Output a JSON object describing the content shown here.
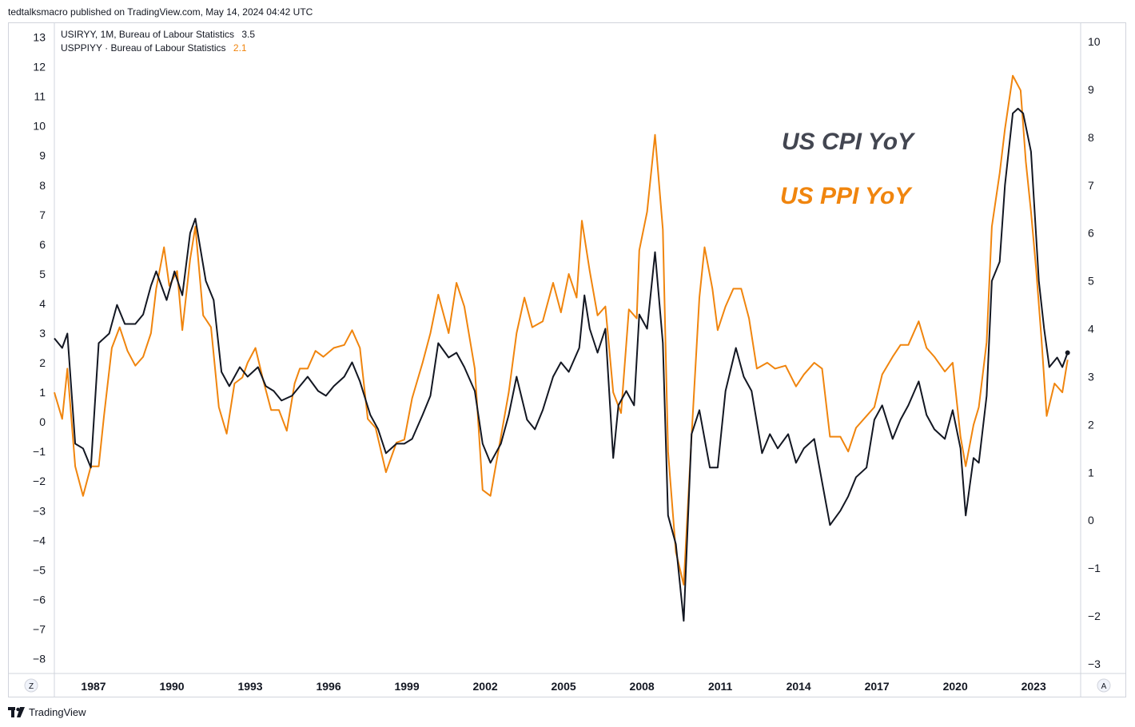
{
  "header": {
    "text": "tedtalksmacro published on TradingView.com, May 14, 2024 04:42 UTC"
  },
  "legend": {
    "cpi": {
      "label": "USIRYY, 1M, Bureau of Labour Statistics",
      "value": "3.5"
    },
    "ppi": {
      "label": "USPPIYY · Bureau of Labour Statistics",
      "value": "2.1"
    }
  },
  "annotations": {
    "cpi": "US CPI YoY",
    "ppi": "US PPI YoY"
  },
  "corner": {
    "left": "Z",
    "right": "A"
  },
  "footer": {
    "brand": "TradingView"
  },
  "colors": {
    "cpi": "#131722",
    "ppi": "#f0850e",
    "grid": "#d1d4dc"
  },
  "chart_data": {
    "type": "line",
    "x_range": [
      1985.5,
      2024.8
    ],
    "x_ticks": [
      "1987",
      "1990",
      "1993",
      "1996",
      "1999",
      "2002",
      "2005",
      "2008",
      "2011",
      "2014",
      "2017",
      "2020",
      "2023"
    ],
    "left_axis": {
      "series": "PPI",
      "range": [
        -8.5,
        13.5
      ],
      "ticks": [
        13,
        12,
        11,
        10,
        9,
        8,
        7,
        6,
        5,
        4,
        3,
        2,
        1,
        0,
        -1,
        -2,
        -3,
        -4,
        -5,
        -6,
        -7,
        -8
      ],
      "tick_labels": [
        "13",
        "12",
        "11",
        "10",
        "9",
        "8",
        "7",
        "6",
        "5",
        "4",
        "3",
        "2",
        "1",
        "0",
        "−1",
        "−2",
        "−3",
        "−4",
        "−5",
        "−6",
        "−7",
        "−8"
      ]
    },
    "right_axis": {
      "series": "CPI",
      "range": [
        -3.2,
        10.4
      ],
      "ticks": [
        10,
        9,
        8,
        7,
        6,
        5,
        4,
        3,
        2,
        1,
        0,
        -1,
        -2,
        -3
      ],
      "tick_labels": [
        "10",
        "9",
        "8",
        "7",
        "6",
        "5",
        "4",
        "3",
        "2",
        "1",
        "0",
        "−1",
        "−2",
        "−3"
      ]
    },
    "series": [
      {
        "name": "USIRYY (US CPI YoY)",
        "axis": "right",
        "points": [
          [
            1985.5,
            3.8
          ],
          [
            1985.8,
            3.6
          ],
          [
            1986.0,
            3.9
          ],
          [
            1986.3,
            1.6
          ],
          [
            1986.6,
            1.5
          ],
          [
            1986.9,
            1.1
          ],
          [
            1987.2,
            3.7
          ],
          [
            1987.6,
            3.9
          ],
          [
            1987.9,
            4.5
          ],
          [
            1988.2,
            4.1
          ],
          [
            1988.6,
            4.1
          ],
          [
            1988.9,
            4.3
          ],
          [
            1989.2,
            4.9
          ],
          [
            1989.4,
            5.2
          ],
          [
            1989.8,
            4.6
          ],
          [
            1990.1,
            5.2
          ],
          [
            1990.4,
            4.7
          ],
          [
            1990.7,
            6.0
          ],
          [
            1990.9,
            6.3
          ],
          [
            1991.3,
            5.0
          ],
          [
            1991.6,
            4.6
          ],
          [
            1991.9,
            3.1
          ],
          [
            1992.2,
            2.8
          ],
          [
            1992.6,
            3.2
          ],
          [
            1992.9,
            3.0
          ],
          [
            1993.3,
            3.2
          ],
          [
            1993.6,
            2.8
          ],
          [
            1993.9,
            2.7
          ],
          [
            1994.2,
            2.5
          ],
          [
            1994.6,
            2.6
          ],
          [
            1994.9,
            2.8
          ],
          [
            1995.2,
            3.0
          ],
          [
            1995.6,
            2.7
          ],
          [
            1995.9,
            2.6
          ],
          [
            1996.2,
            2.8
          ],
          [
            1996.6,
            3.0
          ],
          [
            1996.9,
            3.3
          ],
          [
            1997.2,
            2.9
          ],
          [
            1997.6,
            2.2
          ],
          [
            1997.9,
            1.9
          ],
          [
            1998.2,
            1.4
          ],
          [
            1998.6,
            1.6
          ],
          [
            1998.9,
            1.6
          ],
          [
            1999.2,
            1.7
          ],
          [
            1999.6,
            2.2
          ],
          [
            1999.9,
            2.6
          ],
          [
            2000.2,
            3.7
          ],
          [
            2000.6,
            3.4
          ],
          [
            2000.9,
            3.5
          ],
          [
            2001.2,
            3.2
          ],
          [
            2001.6,
            2.7
          ],
          [
            2001.9,
            1.6
          ],
          [
            2002.2,
            1.2
          ],
          [
            2002.6,
            1.6
          ],
          [
            2002.9,
            2.2
          ],
          [
            2003.2,
            3.0
          ],
          [
            2003.6,
            2.1
          ],
          [
            2003.9,
            1.9
          ],
          [
            2004.2,
            2.3
          ],
          [
            2004.6,
            3.0
          ],
          [
            2004.9,
            3.3
          ],
          [
            2005.2,
            3.1
          ],
          [
            2005.6,
            3.6
          ],
          [
            2005.8,
            4.7
          ],
          [
            2006.0,
            4.0
          ],
          [
            2006.3,
            3.5
          ],
          [
            2006.6,
            4.0
          ],
          [
            2006.9,
            1.3
          ],
          [
            2007.1,
            2.4
          ],
          [
            2007.4,
            2.7
          ],
          [
            2007.7,
            2.4
          ],
          [
            2007.9,
            4.3
          ],
          [
            2008.2,
            4.0
          ],
          [
            2008.5,
            5.6
          ],
          [
            2008.8,
            3.7
          ],
          [
            2009.0,
            0.1
          ],
          [
            2009.3,
            -0.5
          ],
          [
            2009.6,
            -2.1
          ],
          [
            2009.9,
            1.8
          ],
          [
            2010.2,
            2.3
          ],
          [
            2010.6,
            1.1
          ],
          [
            2010.9,
            1.1
          ],
          [
            2011.2,
            2.7
          ],
          [
            2011.6,
            3.6
          ],
          [
            2011.9,
            3.0
          ],
          [
            2012.2,
            2.7
          ],
          [
            2012.6,
            1.4
          ],
          [
            2012.9,
            1.8
          ],
          [
            2013.2,
            1.5
          ],
          [
            2013.6,
            1.8
          ],
          [
            2013.9,
            1.2
          ],
          [
            2014.2,
            1.5
          ],
          [
            2014.6,
            1.7
          ],
          [
            2014.9,
            0.8
          ],
          [
            2015.2,
            -0.1
          ],
          [
            2015.6,
            0.2
          ],
          [
            2015.9,
            0.5
          ],
          [
            2016.2,
            0.9
          ],
          [
            2016.6,
            1.1
          ],
          [
            2016.9,
            2.1
          ],
          [
            2017.2,
            2.4
          ],
          [
            2017.6,
            1.7
          ],
          [
            2017.9,
            2.1
          ],
          [
            2018.2,
            2.4
          ],
          [
            2018.6,
            2.9
          ],
          [
            2018.9,
            2.2
          ],
          [
            2019.2,
            1.9
          ],
          [
            2019.6,
            1.7
          ],
          [
            2019.9,
            2.3
          ],
          [
            2020.2,
            1.5
          ],
          [
            2020.4,
            0.1
          ],
          [
            2020.7,
            1.3
          ],
          [
            2020.9,
            1.2
          ],
          [
            2021.2,
            2.6
          ],
          [
            2021.4,
            5.0
          ],
          [
            2021.7,
            5.4
          ],
          [
            2021.9,
            7.0
          ],
          [
            2022.2,
            8.5
          ],
          [
            2022.4,
            8.6
          ],
          [
            2022.6,
            8.5
          ],
          [
            2022.9,
            7.7
          ],
          [
            2023.2,
            5.0
          ],
          [
            2023.4,
            4.0
          ],
          [
            2023.6,
            3.2
          ],
          [
            2023.9,
            3.4
          ],
          [
            2024.1,
            3.2
          ],
          [
            2024.3,
            3.5
          ]
        ]
      },
      {
        "name": "USPPIYY (US PPI YoY)",
        "axis": "left",
        "points": [
          [
            1985.5,
            1.0
          ],
          [
            1985.8,
            0.1
          ],
          [
            1986.0,
            1.8
          ],
          [
            1986.3,
            -1.5
          ],
          [
            1986.6,
            -2.5
          ],
          [
            1986.9,
            -1.5
          ],
          [
            1987.2,
            -1.5
          ],
          [
            1987.4,
            0.2
          ],
          [
            1987.7,
            2.5
          ],
          [
            1988.0,
            3.2
          ],
          [
            1988.3,
            2.4
          ],
          [
            1988.6,
            1.9
          ],
          [
            1988.9,
            2.2
          ],
          [
            1989.2,
            3.0
          ],
          [
            1989.4,
            4.5
          ],
          [
            1989.7,
            5.9
          ],
          [
            1989.9,
            4.6
          ],
          [
            1990.2,
            5.1
          ],
          [
            1990.4,
            3.1
          ],
          [
            1990.7,
            5.5
          ],
          [
            1990.9,
            6.6
          ],
          [
            1991.2,
            3.6
          ],
          [
            1991.5,
            3.2
          ],
          [
            1991.8,
            0.5
          ],
          [
            1992.1,
            -0.4
          ],
          [
            1992.4,
            1.3
          ],
          [
            1992.7,
            1.5
          ],
          [
            1992.9,
            2.0
          ],
          [
            1993.2,
            2.5
          ],
          [
            1993.5,
            1.4
          ],
          [
            1993.8,
            0.4
          ],
          [
            1994.1,
            0.4
          ],
          [
            1994.4,
            -0.3
          ],
          [
            1994.7,
            1.3
          ],
          [
            1994.9,
            1.8
          ],
          [
            1995.2,
            1.8
          ],
          [
            1995.5,
            2.4
          ],
          [
            1995.8,
            2.2
          ],
          [
            1996.2,
            2.5
          ],
          [
            1996.6,
            2.6
          ],
          [
            1996.9,
            3.1
          ],
          [
            1997.2,
            2.5
          ],
          [
            1997.5,
            0.1
          ],
          [
            1997.8,
            -0.2
          ],
          [
            1998.2,
            -1.7
          ],
          [
            1998.6,
            -0.7
          ],
          [
            1998.9,
            -0.6
          ],
          [
            1999.2,
            0.8
          ],
          [
            1999.6,
            2.0
          ],
          [
            1999.9,
            3.0
          ],
          [
            2000.2,
            4.3
          ],
          [
            2000.6,
            3.0
          ],
          [
            2000.9,
            4.7
          ],
          [
            2001.2,
            3.9
          ],
          [
            2001.6,
            1.8
          ],
          [
            2001.9,
            -2.3
          ],
          [
            2002.2,
            -2.5
          ],
          [
            2002.5,
            -1.0
          ],
          [
            2002.9,
            1.0
          ],
          [
            2003.2,
            3.0
          ],
          [
            2003.5,
            4.2
          ],
          [
            2003.8,
            3.2
          ],
          [
            2004.2,
            3.4
          ],
          [
            2004.6,
            4.7
          ],
          [
            2004.9,
            3.7
          ],
          [
            2005.2,
            5.0
          ],
          [
            2005.5,
            4.2
          ],
          [
            2005.7,
            6.8
          ],
          [
            2006.0,
            5.1
          ],
          [
            2006.3,
            3.6
          ],
          [
            2006.6,
            3.9
          ],
          [
            2006.9,
            1.0
          ],
          [
            2007.2,
            0.3
          ],
          [
            2007.5,
            3.8
          ],
          [
            2007.8,
            3.5
          ],
          [
            2007.9,
            5.8
          ],
          [
            2008.2,
            7.1
          ],
          [
            2008.5,
            9.7
          ],
          [
            2008.8,
            6.5
          ],
          [
            2009.0,
            -1.0
          ],
          [
            2009.3,
            -4.4
          ],
          [
            2009.6,
            -5.5
          ],
          [
            2009.9,
            -0.5
          ],
          [
            2010.2,
            4.2
          ],
          [
            2010.4,
            5.9
          ],
          [
            2010.7,
            4.5
          ],
          [
            2010.9,
            3.1
          ],
          [
            2011.2,
            3.9
          ],
          [
            2011.5,
            4.5
          ],
          [
            2011.8,
            4.5
          ],
          [
            2012.1,
            3.5
          ],
          [
            2012.4,
            1.8
          ],
          [
            2012.8,
            2.0
          ],
          [
            2013.1,
            1.8
          ],
          [
            2013.5,
            1.9
          ],
          [
            2013.9,
            1.2
          ],
          [
            2014.2,
            1.6
          ],
          [
            2014.6,
            2.0
          ],
          [
            2014.9,
            1.8
          ],
          [
            2015.2,
            -0.5
          ],
          [
            2015.6,
            -0.5
          ],
          [
            2015.9,
            -1.0
          ],
          [
            2016.2,
            -0.2
          ],
          [
            2016.6,
            0.2
          ],
          [
            2016.9,
            0.5
          ],
          [
            2017.2,
            1.6
          ],
          [
            2017.6,
            2.2
          ],
          [
            2017.9,
            2.6
          ],
          [
            2018.2,
            2.6
          ],
          [
            2018.6,
            3.4
          ],
          [
            2018.9,
            2.5
          ],
          [
            2019.2,
            2.2
          ],
          [
            2019.6,
            1.7
          ],
          [
            2019.9,
            2.0
          ],
          [
            2020.2,
            -0.5
          ],
          [
            2020.4,
            -1.5
          ],
          [
            2020.7,
            -0.1
          ],
          [
            2020.9,
            0.5
          ],
          [
            2021.2,
            2.7
          ],
          [
            2021.4,
            6.6
          ],
          [
            2021.7,
            8.4
          ],
          [
            2021.9,
            9.9
          ],
          [
            2022.2,
            11.7
          ],
          [
            2022.5,
            11.2
          ],
          [
            2022.7,
            8.8
          ],
          [
            2022.9,
            7.1
          ],
          [
            2023.1,
            5.1
          ],
          [
            2023.3,
            2.8
          ],
          [
            2023.5,
            0.2
          ],
          [
            2023.8,
            1.3
          ],
          [
            2024.1,
            1.0
          ],
          [
            2024.3,
            2.1
          ]
        ]
      }
    ]
  }
}
